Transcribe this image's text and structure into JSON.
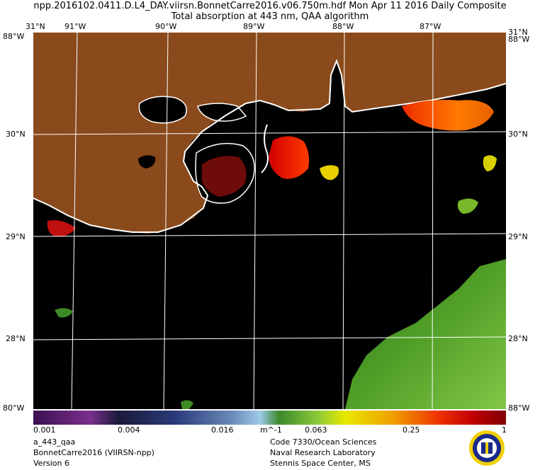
{
  "header": {
    "line1": "npp.2016102.0411.D.L4_DAY.viirsn.BonnetCarre2016.v06.750m.hdf    Mon Apr 11 2016 Daily Composite",
    "line2": "Total absorption at 443 nm, QAA algorithm"
  },
  "map": {
    "lon_labels_top": [
      "91°W",
      "90°W",
      "89°W",
      "88°W",
      "87°W"
    ],
    "lat_labels": [
      "30°N",
      "29°N",
      "28°N"
    ],
    "corner_labels": {
      "top_left": "31°N",
      "top_left_w": "88°W",
      "top_right": "31°N",
      "top_right_w": "88°W",
      "bottom_left": "80°W",
      "bottom_right": "88°W"
    },
    "colors": {
      "land": "#8b4a1c",
      "water": "#000000",
      "graticule": "#ffffff",
      "coastline": "#ffffff"
    }
  },
  "colorbar": {
    "ticks": [
      "0.001",
      "0.004",
      "0.016",
      "0.063",
      "0.25",
      "1"
    ],
    "unit": "m^-1",
    "colors": [
      "#4b1a5e",
      "#7a2f8c",
      "#1a1a3a",
      "#2a3a7a",
      "#6a8ab8",
      "#9ecae8",
      "#3a8a2a",
      "#8ac83a",
      "#e8e800",
      "#f0a000",
      "#ee3000",
      "#c00000",
      "#800000"
    ]
  },
  "footer": {
    "left": [
      "a_443_qaa",
      "BonnetCarre2016 (VIIRSN-npp)",
      "Version 6"
    ],
    "right": [
      "Code 7330/Ocean Sciences",
      "Naval Research Laboratory",
      "Stennis Space Center, MS"
    ]
  }
}
